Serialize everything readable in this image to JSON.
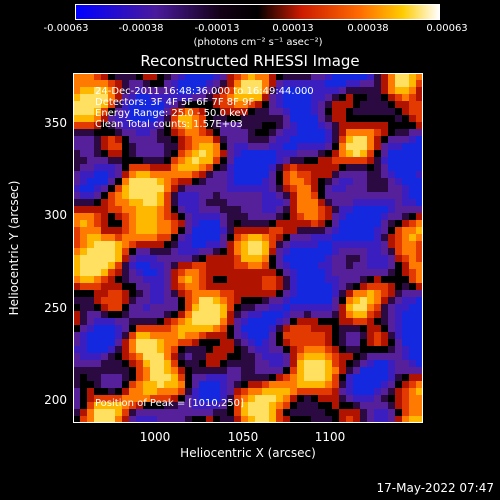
{
  "colorbar": {
    "ticks": [
      "-0.00063",
      "-0.00038",
      "-0.00013",
      "0.00013",
      "0.00038",
      "0.00063"
    ],
    "unit_label": "(photons cm⁻² s⁻¹ asec⁻²)",
    "colors": [
      "#0000ff",
      "#4a1a9c",
      "#000000",
      "#cc1a00",
      "#ff6a00",
      "#ffcc00",
      "#ffffff"
    ]
  },
  "title": "Reconstructed RHESSI Image",
  "info": {
    "line1": "24-Dec-2011 16:48:36.000 to 16:49:44.000",
    "line2": "Detectors: 3F 4F 5F 6F 7F 8F 9F",
    "line3": "Energy Range: 25.0 - 50.0 keV",
    "line4": "Clean     Total counts: 1.57E+03",
    "peak": "Position of Peak = [1010,250]"
  },
  "axes": {
    "xlabel": "Heliocentric X (arcsec)",
    "ylabel": "Heliocentric Y (arcsec)",
    "xticks": [
      "1000",
      "1050",
      "1100"
    ],
    "yticks": [
      "350",
      "300",
      "250",
      "200"
    ]
  },
  "footer": {
    "date": "17-May-2022 07:47"
  }
}
